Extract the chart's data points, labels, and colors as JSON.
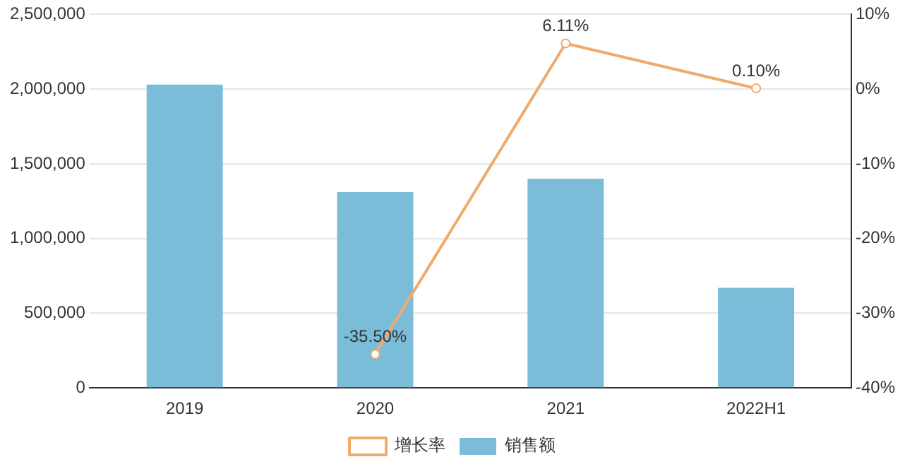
{
  "chart_data": {
    "type": "bar",
    "categories": [
      "2019",
      "2020",
      "2021",
      "2022H1"
    ],
    "series": [
      {
        "name": "销售额",
        "color": "#7bbdd9",
        "values": [
          2030000,
          1310000,
          1400000,
          670000
        ]
      },
      {
        "name": "增长率",
        "type": "line",
        "axis": "y2",
        "color": "#f0aa6c",
        "values": [
          null,
          -35.5,
          6.11,
          0.1
        ],
        "value_labels": [
          null,
          "-35.50%",
          "6.11%",
          "0.10%"
        ]
      }
    ],
    "ylim": [
      0,
      2500000
    ],
    "yticks": [
      {
        "value": 0,
        "label": "0"
      },
      {
        "value": 500000,
        "label": "500,000"
      },
      {
        "value": 1000000,
        "label": "1,000,000"
      },
      {
        "value": 1500000,
        "label": "1,500,000"
      },
      {
        "value": 2000000,
        "label": "2,000,000"
      },
      {
        "value": 2500000,
        "label": "2,500,000"
      }
    ],
    "y2lim": [
      -40,
      10
    ],
    "y2ticks": [
      {
        "value": -40,
        "label": "-40%"
      },
      {
        "value": -30,
        "label": "-30%"
      },
      {
        "value": -20,
        "label": "-20%"
      },
      {
        "value": -10,
        "label": "-10%"
      },
      {
        "value": 0,
        "label": "0%"
      },
      {
        "value": 10,
        "label": "10%"
      }
    ],
    "grid": "y",
    "legend": "bottom",
    "marker": "circle",
    "line_style": "solid"
  }
}
